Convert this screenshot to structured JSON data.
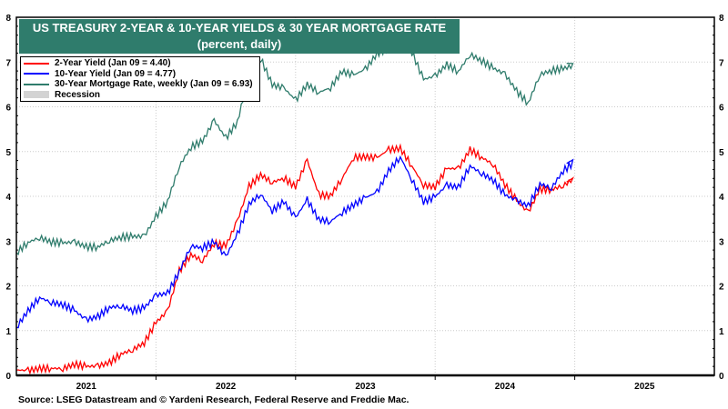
{
  "chart_data": {
    "type": "line",
    "title": "US TREASURY 2-YEAR & 10-YEAR YIELDS & 30 YEAR MORTGAGE RATE",
    "subtitle": "(percent, daily)",
    "ylim": [
      0,
      8
    ],
    "yticks": [
      "0",
      "1",
      "2",
      "3",
      "4",
      "5",
      "6",
      "7",
      "8"
    ],
    "xlim": [
      2021.0,
      2026.0
    ],
    "xticks": [
      "2021",
      "2022",
      "2023",
      "2024",
      "2025"
    ],
    "grid": true,
    "legend_position": "top-left",
    "x_start": 2021.0,
    "x_step_months": 1,
    "series": [
      {
        "name": "2-Year Yield (Jan 09 = 4.40)",
        "color": "#ff0000",
        "values": [
          0.12,
          0.11,
          0.15,
          0.16,
          0.15,
          0.25,
          0.2,
          0.21,
          0.28,
          0.48,
          0.57,
          0.73,
          1.18,
          1.44,
          2.33,
          2.7,
          2.56,
          2.95,
          2.89,
          3.45,
          4.22,
          4.48,
          4.31,
          4.41,
          4.21,
          4.81,
          4.03,
          4.01,
          4.4,
          4.87,
          4.88,
          4.86,
          5.04,
          5.07,
          4.68,
          4.25,
          4.21,
          4.62,
          4.62,
          5.04,
          4.87,
          4.71,
          4.26,
          3.91,
          3.64,
          4.16,
          4.15,
          4.24,
          4.4
        ]
      },
      {
        "name": "10-Year Yield (Jan 09 = 4.77)",
        "color": "#0000ff",
        "values": [
          1.07,
          1.44,
          1.74,
          1.63,
          1.58,
          1.45,
          1.24,
          1.31,
          1.52,
          1.55,
          1.45,
          1.51,
          1.79,
          1.83,
          2.32,
          2.89,
          2.85,
          2.98,
          2.65,
          3.15,
          3.83,
          4.05,
          3.68,
          3.88,
          3.52,
          3.92,
          3.48,
          3.44,
          3.64,
          3.81,
          3.97,
          4.09,
          4.57,
          4.88,
          4.37,
          3.88,
          3.99,
          4.25,
          4.2,
          4.68,
          4.51,
          4.36,
          4.03,
          3.91,
          3.78,
          4.28,
          4.18,
          4.57,
          4.77
        ]
      },
      {
        "name": "30-Year Mortgage Rate, weekly (Jan 09 = 6.93)",
        "color": "#2f7c6c",
        "values": [
          2.74,
          2.97,
          3.08,
          2.98,
          2.96,
          2.98,
          2.87,
          2.87,
          3.01,
          3.09,
          3.1,
          3.11,
          3.55,
          3.89,
          4.67,
          5.1,
          5.23,
          5.7,
          5.3,
          5.66,
          6.7,
          7.08,
          6.49,
          6.42,
          6.15,
          6.5,
          6.32,
          6.43,
          6.79,
          6.71,
          6.84,
          7.18,
          7.31,
          7.79,
          7.22,
          6.61,
          6.69,
          6.94,
          6.79,
          7.17,
          7.03,
          6.86,
          6.73,
          6.35,
          6.08,
          6.72,
          6.81,
          6.85,
          6.93
        ]
      }
    ],
    "recession_label": "Recession",
    "recession_color": "#d3d3d3",
    "source": "Source: LSEG Datastream and © Yardeni Research, Federal Reserve and Freddie Mac."
  }
}
